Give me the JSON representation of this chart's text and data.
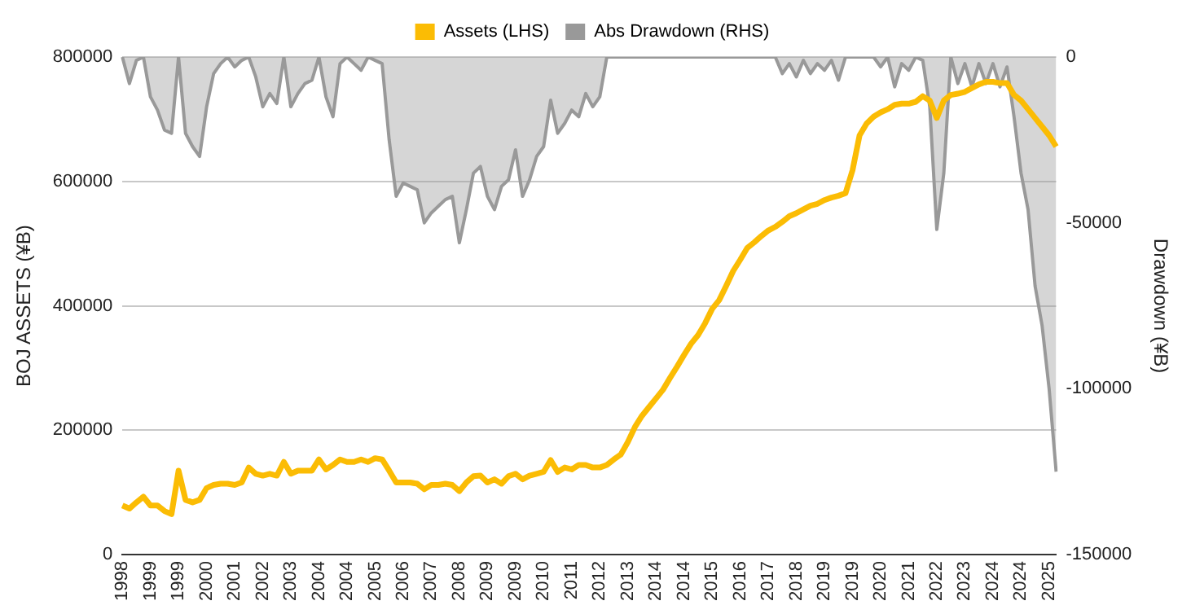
{
  "chart_data": {
    "type": "line",
    "ylabel": "BOJ ASSETS (¥B)",
    "y2label": "Drawdown (¥B)",
    "legend": "top",
    "grid": "y",
    "marker": "none",
    "line_style": "solid",
    "categories": [
      "1998",
      null,
      null,
      null,
      "1999",
      null,
      null,
      null,
      "1999",
      null,
      null,
      null,
      "2000",
      null,
      null,
      null,
      "2001",
      null,
      null,
      null,
      "2002",
      null,
      null,
      null,
      "2003",
      null,
      null,
      null,
      "2004",
      null,
      null,
      null,
      "2004",
      null,
      null,
      null,
      "2005",
      null,
      null,
      null,
      "2006",
      null,
      null,
      null,
      "2007",
      null,
      null,
      null,
      "2008",
      null,
      null,
      null,
      "2009",
      null,
      null,
      null,
      "2009",
      null,
      null,
      null,
      "2010",
      null,
      null,
      null,
      "2011",
      null,
      null,
      null,
      "2012",
      null,
      null,
      null,
      "2013",
      null,
      null,
      null,
      "2014",
      null,
      null,
      null,
      "2014",
      null,
      null,
      null,
      "2015",
      null,
      null,
      null,
      "2016",
      null,
      null,
      null,
      "2017",
      null,
      null,
      null,
      "2018",
      null,
      null,
      null,
      "2019",
      null,
      null,
      null,
      "2019",
      null,
      null,
      null,
      "2020",
      null,
      null,
      null,
      "2021",
      null,
      null,
      null,
      "2022",
      null,
      null,
      null,
      "2023",
      null,
      null,
      null,
      "2024",
      null,
      null,
      null,
      "2024",
      null,
      null,
      null,
      "2025",
      null
    ],
    "ylim": [
      0,
      800000
    ],
    "yticks": [
      0,
      200000,
      400000,
      600000,
      800000
    ],
    "y2lim": [
      -150000,
      0
    ],
    "y2ticks": [
      -150000,
      -100000,
      -50000,
      0
    ],
    "series": [
      {
        "name": "Assets (LHS)",
        "type": "line",
        "color": "#fbbc04",
        "values": [
          79000,
          74000,
          84000,
          93000,
          79000,
          79000,
          70000,
          65000,
          135000,
          88000,
          84000,
          88000,
          107000,
          112000,
          114000,
          114000,
          112000,
          116000,
          140000,
          130000,
          127000,
          130000,
          127000,
          149000,
          130000,
          135000,
          135000,
          135000,
          153000,
          137000,
          144000,
          153000,
          149000,
          149000,
          153000,
          149000,
          155000,
          153000,
          135000,
          116000,
          116000,
          116000,
          114000,
          105000,
          112000,
          112000,
          114000,
          112000,
          102000,
          116000,
          126000,
          127000,
          116000,
          121000,
          114000,
          126000,
          130000,
          121000,
          127000,
          130000,
          133000,
          152000,
          133000,
          140000,
          137000,
          144000,
          144000,
          140000,
          140000,
          144000,
          153000,
          161000,
          181000,
          205000,
          223000,
          237000,
          251000,
          265000,
          284000,
          302000,
          321000,
          339000,
          353000,
          372000,
          395000,
          409000,
          432000,
          456000,
          474000,
          493000,
          502000,
          512000,
          521000,
          527000,
          535000,
          544000,
          549000,
          555000,
          561000,
          564000,
          570000,
          574000,
          577000,
          581000,
          618000,
          674000,
          693000,
          704000,
          711000,
          716000,
          723000,
          725000,
          725000,
          728000,
          737000,
          730000,
          702000,
          730000,
          739000,
          741000,
          744000,
          750000,
          756000,
          760000,
          760000,
          758000,
          758000,
          739000,
          730000,
          716000,
          702000,
          688000,
          674000,
          656000
        ]
      },
      {
        "name": "Abs Drawdown (RHS)",
        "type": "area",
        "axis": "y2",
        "color": "#999999",
        "values": [
          0,
          -8000,
          -1000,
          0,
          -12000,
          -16000,
          -22000,
          -23000,
          0,
          -23000,
          -27000,
          -30000,
          -15000,
          -5000,
          -2000,
          0,
          -3000,
          -1000,
          0,
          -6000,
          -15000,
          -11000,
          -14000,
          0,
          -15000,
          -11000,
          -8000,
          -7000,
          0,
          -12000,
          -18000,
          -2000,
          0,
          -2000,
          -4000,
          0,
          -1000,
          -2000,
          -25000,
          -42000,
          -38000,
          -39000,
          -40000,
          -50000,
          -47000,
          -45000,
          -43000,
          -42000,
          -56000,
          -46000,
          -35000,
          -33000,
          -42000,
          -46000,
          -39000,
          -37000,
          -28000,
          -42000,
          -37000,
          -30000,
          -27000,
          -13000,
          -23000,
          -20000,
          -16000,
          -18000,
          -11000,
          -15000,
          -12000,
          0,
          0,
          0,
          0,
          0,
          0,
          0,
          0,
          0,
          0,
          0,
          0,
          0,
          0,
          0,
          0,
          0,
          0,
          0,
          0,
          0,
          0,
          0,
          0,
          0,
          -5000,
          -2000,
          -6000,
          -1000,
          -5000,
          -2000,
          -4000,
          -1000,
          -7000,
          0,
          0,
          0,
          0,
          0,
          -3000,
          0,
          -9000,
          -2000,
          -4000,
          0,
          -1000,
          -15000,
          -52000,
          -35000,
          0,
          -8000,
          -2000,
          -9000,
          -2000,
          -8000,
          -2000,
          -9000,
          -3000,
          -18000,
          -35000,
          -46000,
          -69000,
          -81000,
          -100000,
          -125000
        ]
      }
    ]
  }
}
